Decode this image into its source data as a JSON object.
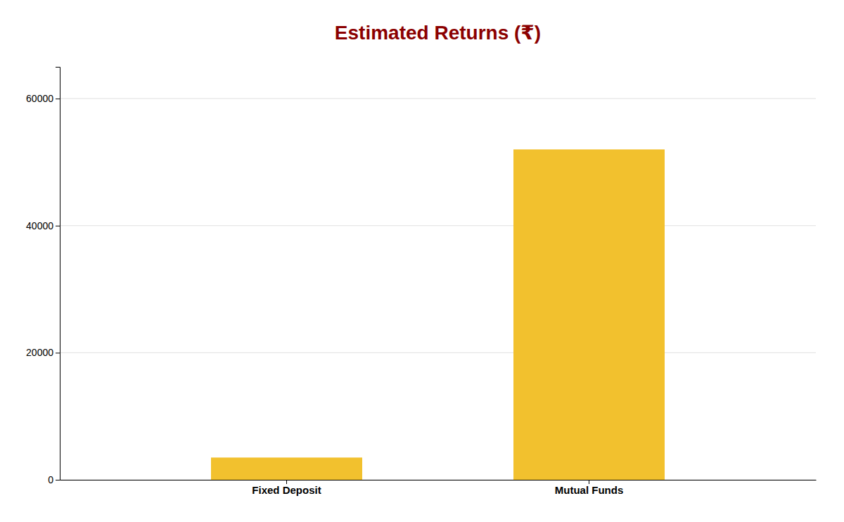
{
  "chart_data": {
    "type": "bar",
    "title": "Estimated Returns (₹)",
    "categories": [
      "Fixed Deposit",
      "Mutual Funds"
    ],
    "values": [
      3500,
      52000
    ],
    "color": "#F2C12E",
    "ylim": [
      0,
      65000
    ],
    "yticks": [
      0,
      20000,
      40000,
      60000
    ],
    "grid": true
  }
}
